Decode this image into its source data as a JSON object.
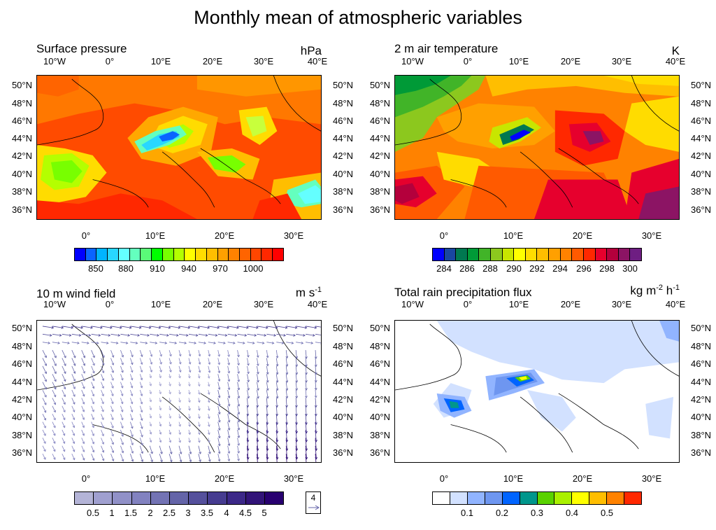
{
  "figure_title": "Monthly mean of atmospheric variables",
  "panels": {
    "sp": {
      "title": "Surface pressure",
      "unit": "hPa",
      "colors": [
        "#0000ff",
        "#0a64ff",
        "#00b4ff",
        "#28d7ff",
        "#64ffff",
        "#64ffbe",
        "#5afa78",
        "#00ff00",
        "#78ff00",
        "#b4ff00",
        "#ffff00",
        "#ffdc00",
        "#ffbe00",
        "#ffa000",
        "#ff8200",
        "#ff6400",
        "#ff4600",
        "#ff2800",
        "#ff0000"
      ],
      "ticks": [
        "850",
        "880",
        "910",
        "940",
        "970",
        "1000"
      ]
    },
    "t2m": {
      "title": "2 m air temperature",
      "unit": "K",
      "colors": [
        "#0000ff",
        "#1946a0",
        "#007850",
        "#009a37",
        "#41b428",
        "#8cc81e",
        "#c8e600",
        "#ffff00",
        "#ffdc00",
        "#ffbe00",
        "#ffa000",
        "#ff8200",
        "#ff5a00",
        "#ff2800",
        "#e6002d",
        "#b4003c",
        "#8c1464",
        "#6e1e82"
      ],
      "ticks": [
        "284",
        "286",
        "288",
        "290",
        "292",
        "294",
        "296",
        "298",
        "300"
      ]
    },
    "wind": {
      "title": "10 m wind field",
      "unit_base": "m s",
      "unit_exp": "-1",
      "ref_value": "4",
      "colors": [
        "#b4b4d7",
        "#a0a0d0",
        "#9191c8",
        "#8282c0",
        "#7373b4",
        "#6464a8",
        "#55509c",
        "#463c90",
        "#3c2888",
        "#321478",
        "#280070"
      ],
      "ticks": [
        "0.5",
        "1",
        "1.5",
        "2",
        "2.5",
        "3",
        "3.5",
        "4",
        "4.5",
        "5"
      ]
    },
    "rain": {
      "title": "Total rain precipitation flux",
      "unit_base1": "kg m",
      "unit_exp1": "-2",
      "unit_base2": " h",
      "unit_exp2": "-1",
      "colors": [
        "#ffffff",
        "#d2e1ff",
        "#91b4ff",
        "#6e96f0",
        "#0064ff",
        "#00968c",
        "#5ad200",
        "#aaf000",
        "#ffff00",
        "#ffbe00",
        "#ff8200",
        "#ff2800"
      ],
      "ticks": [
        "0.1",
        "0.2",
        "0.3",
        "0.4",
        "0.5"
      ]
    }
  },
  "axes": {
    "top_lon": [
      "10°W",
      "0°",
      "10°E",
      "20°E",
      "30°E",
      "40°E"
    ],
    "bottom_lon": [
      "0°",
      "10°E",
      "20°E",
      "30°E"
    ],
    "lat": [
      "50°N",
      "48°N",
      "46°N",
      "44°N",
      "42°N",
      "40°N",
      "38°N",
      "36°N"
    ]
  }
}
